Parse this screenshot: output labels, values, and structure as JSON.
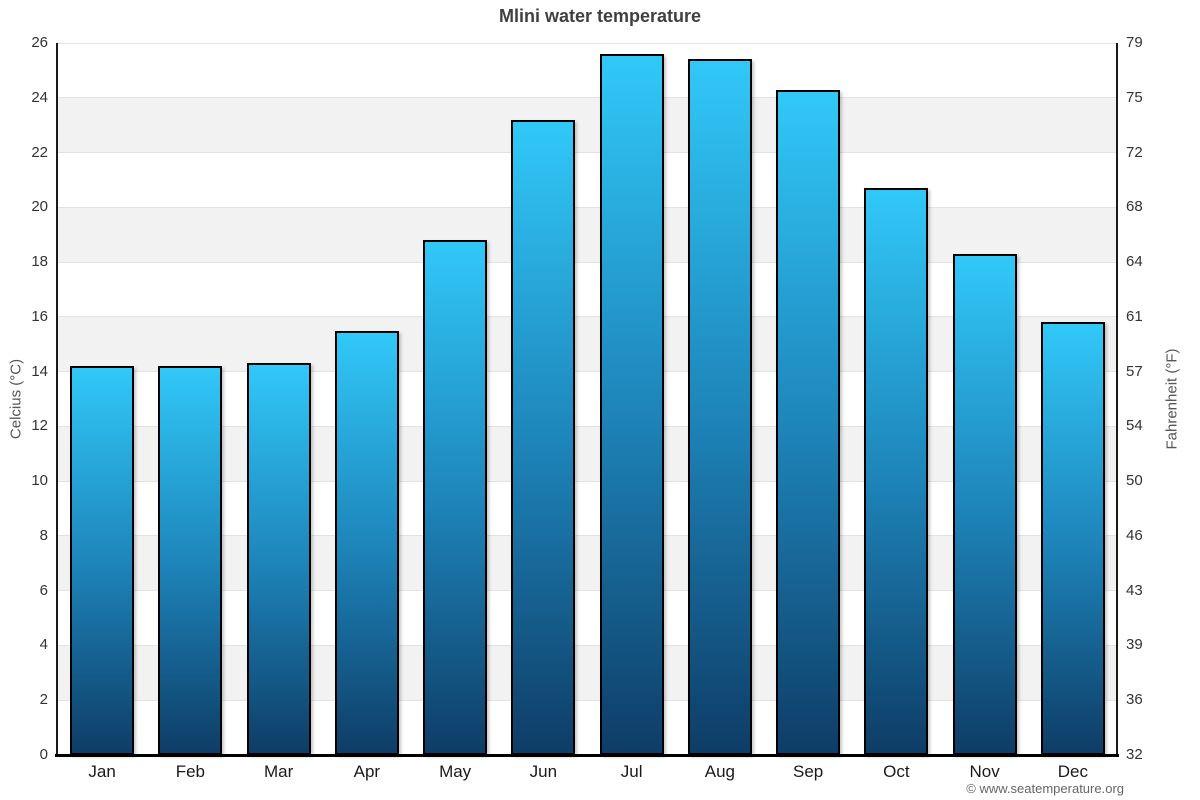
{
  "footer": {
    "credit": "© www.seatemperature.org"
  },
  "chart_data": {
    "type": "bar",
    "title": "Mlini water temperature",
    "categories": [
      "Jan",
      "Feb",
      "Mar",
      "Apr",
      "May",
      "Jun",
      "Jul",
      "Aug",
      "Sep",
      "Oct",
      "Nov",
      "Dec"
    ],
    "values": [
      14.2,
      14.2,
      14.3,
      15.5,
      18.8,
      23.2,
      25.6,
      25.4,
      24.3,
      20.7,
      18.3,
      15.8
    ],
    "xlabel": "",
    "ylabel": "Celcius (°C)",
    "y2label": "Fahrenheit (°F)",
    "ylim": [
      0,
      26
    ],
    "yticks_celsius": [
      0,
      2,
      4,
      6,
      8,
      10,
      12,
      14,
      16,
      18,
      20,
      22,
      24,
      26
    ],
    "yticks_fahrenheit": [
      "32",
      "36",
      "39",
      "43",
      "46",
      "50",
      "54",
      "57",
      "61",
      "64",
      "68",
      "72",
      "75",
      "79"
    ],
    "grid": "horizontal gridlines with alternating light-gray bands",
    "legend": "none",
    "colors": {
      "bar_gradient_top": "#31C8F8",
      "bar_gradient_mid": "#1E86BB",
      "bar_gradient_bottom": "#0E3D67",
      "bar_border": "#000000",
      "band": "#F2F2F2",
      "gridline": "#E2E2E2",
      "axis_line": "#1A1A1A",
      "baseline": "#000000",
      "title_text": "#404040",
      "tick_text": "#333333",
      "axis_title_text": "#555555",
      "footer_text": "#666666"
    }
  }
}
